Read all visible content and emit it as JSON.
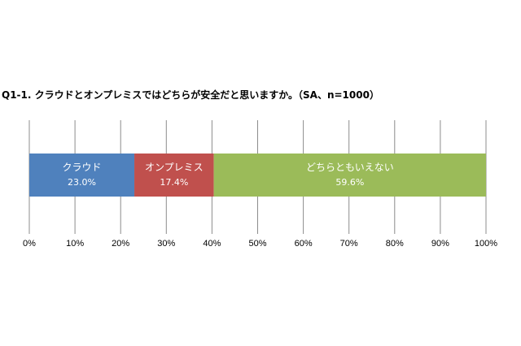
{
  "chart_data": {
    "type": "bar",
    "orientation": "horizontal-stacked",
    "title": "Q1-1. クラウドとオンプレミスではどちらが安全だと思いますか。（SA、n=1000）",
    "categories": [
      ""
    ],
    "series": [
      {
        "name": "クラウド",
        "values": [
          23.0
        ],
        "label": "23.0%",
        "color": "#4F81BD"
      },
      {
        "name": "オンプレミス",
        "values": [
          17.4
        ],
        "label": "17.4%",
        "color": "#C0504D"
      },
      {
        "name": "どちらともいえない",
        "values": [
          59.6
        ],
        "label": "59.6%",
        "color": "#9BBB59"
      }
    ],
    "xlim": [
      0,
      100
    ],
    "x_ticks": [
      "0%",
      "10%",
      "20%",
      "30%",
      "40%",
      "50%",
      "60%",
      "70%",
      "80%",
      "90%",
      "100%"
    ],
    "grid": "vertical",
    "legend": "none",
    "xlabel": "",
    "ylabel": ""
  }
}
